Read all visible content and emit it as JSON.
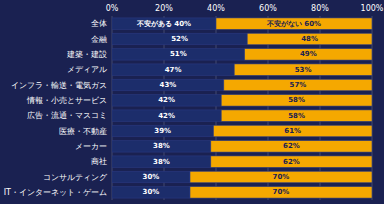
{
  "chart_data": {
    "type": "bar",
    "orientation": "horizontal",
    "stacked": true,
    "data_labels": true,
    "grid": true,
    "categories": [
      "全体",
      "金融",
      "建築・建設",
      "メディアル",
      "インフラ・輸送・電気ガス",
      "情報・小売とサービス",
      "広告・流通・マスコミ",
      "医療・不動産",
      "メーカー",
      "商社",
      "コンサルティング",
      "IT・インターネット・ゲーム"
    ],
    "series": [
      {
        "color": "#1c2d6b",
        "values": [
          40,
          52,
          51,
          47,
          43,
          42,
          42,
          39,
          38,
          38,
          30,
          30
        ],
        "value_labels": [
          "不安がある 40%",
          "52%",
          "51%",
          "47%",
          "43%",
          "42%",
          "42%",
          "39%",
          "38%",
          "38%",
          "30%",
          "30%"
        ]
      },
      {
        "color": "#f5a800",
        "values": [
          60,
          48,
          49,
          53,
          57,
          58,
          58,
          61,
          62,
          62,
          70,
          70
        ],
        "value_labels": [
          "不安がない 60%",
          "48%",
          "49%",
          "53%",
          "57%",
          "58%",
          "58%",
          "61%",
          "62%",
          "62%",
          "70%",
          "70%"
        ]
      }
    ],
    "xlim": [
      0,
      100
    ],
    "xticks": [
      {
        "value": 0,
        "label": "0%"
      },
      {
        "value": 20,
        "label": "20%"
      },
      {
        "value": 40,
        "label": "40%"
      },
      {
        "value": 60,
        "label": "60%"
      },
      {
        "value": 80,
        "label": "80%"
      },
      {
        "value": 100,
        "label": "100%"
      }
    ]
  }
}
